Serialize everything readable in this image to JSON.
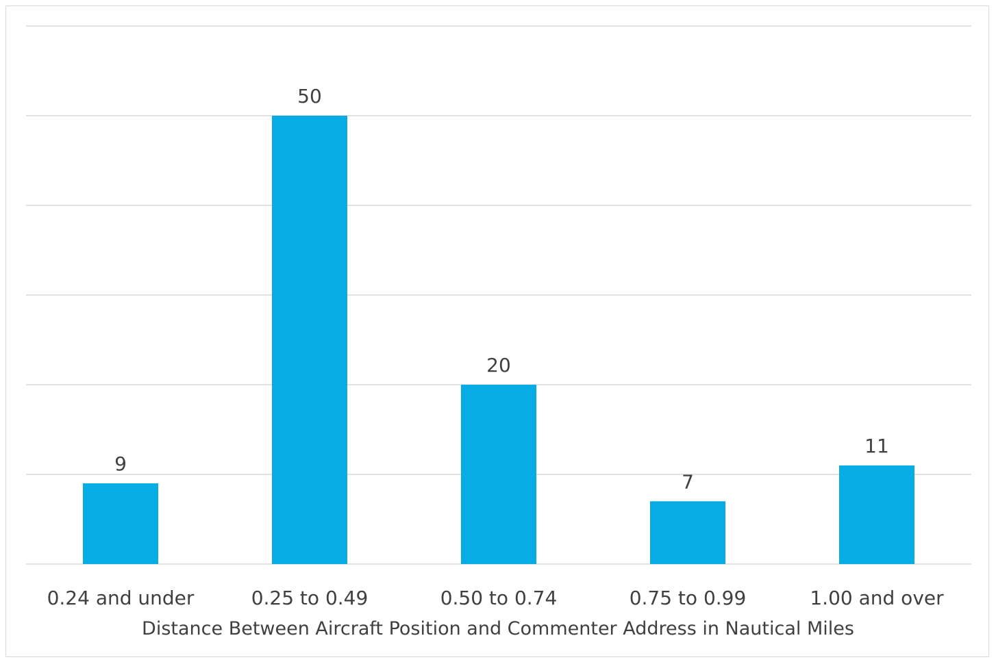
{
  "chart_data": {
    "type": "bar",
    "title": "",
    "xlabel": "Distance Between Aircraft Position and Commenter Address in Nautical Miles",
    "ylabel": "",
    "categories": [
      "0.24 and under",
      "0.25 to 0.49",
      "0.50 to 0.74",
      "0.75 to 0.99",
      "1.00 and over"
    ],
    "values": [
      9,
      50,
      20,
      7,
      11
    ],
    "ylim": [
      0,
      60
    ],
    "gridlines": true,
    "data_labels": true,
    "bar_color": "#08ACE4",
    "gridline_color": "#d9d9d9",
    "legend": "none"
  }
}
